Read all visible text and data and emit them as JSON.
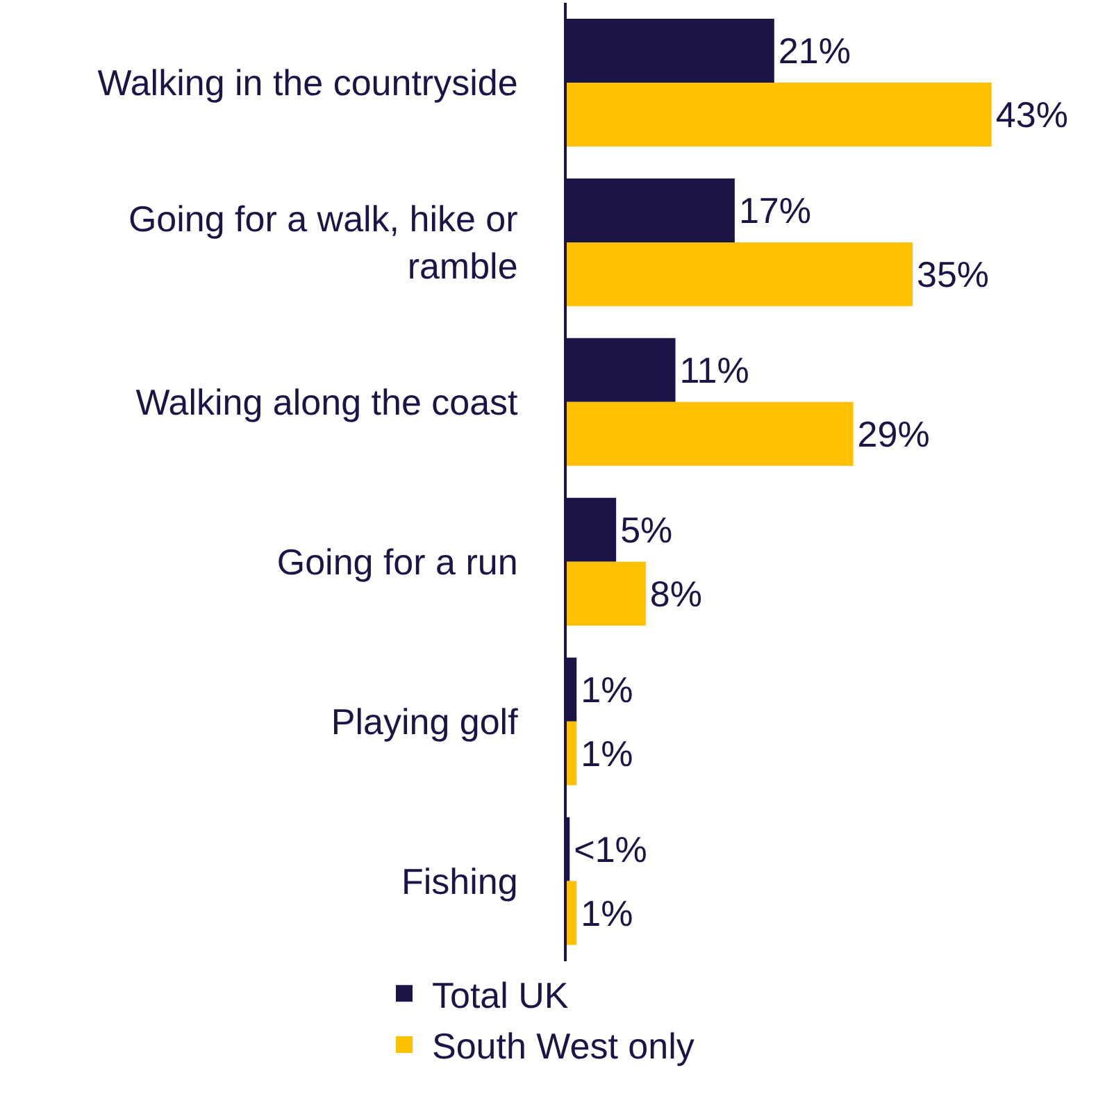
{
  "chart_data": {
    "type": "bar",
    "orientation": "horizontal",
    "categories": [
      "Walking in the countryside",
      "Going for a walk, hike or ramble",
      "Walking along the coast",
      "Going for a run",
      "Playing golf",
      "Fishing"
    ],
    "series": [
      {
        "name": "Total UK",
        "color": "#1b1446",
        "values": [
          21,
          17,
          11,
          5,
          1,
          0.3
        ],
        "value_labels": [
          "21%",
          "17%",
          "11%",
          "5%",
          "1%",
          "<1%"
        ]
      },
      {
        "name": "South West only",
        "color": "#ffc000",
        "values": [
          43,
          35,
          29,
          8,
          1,
          1
        ],
        "value_labels": [
          "43%",
          "35%",
          "29%",
          "8%",
          "1%",
          "1%"
        ]
      }
    ],
    "legend": "bottom"
  }
}
